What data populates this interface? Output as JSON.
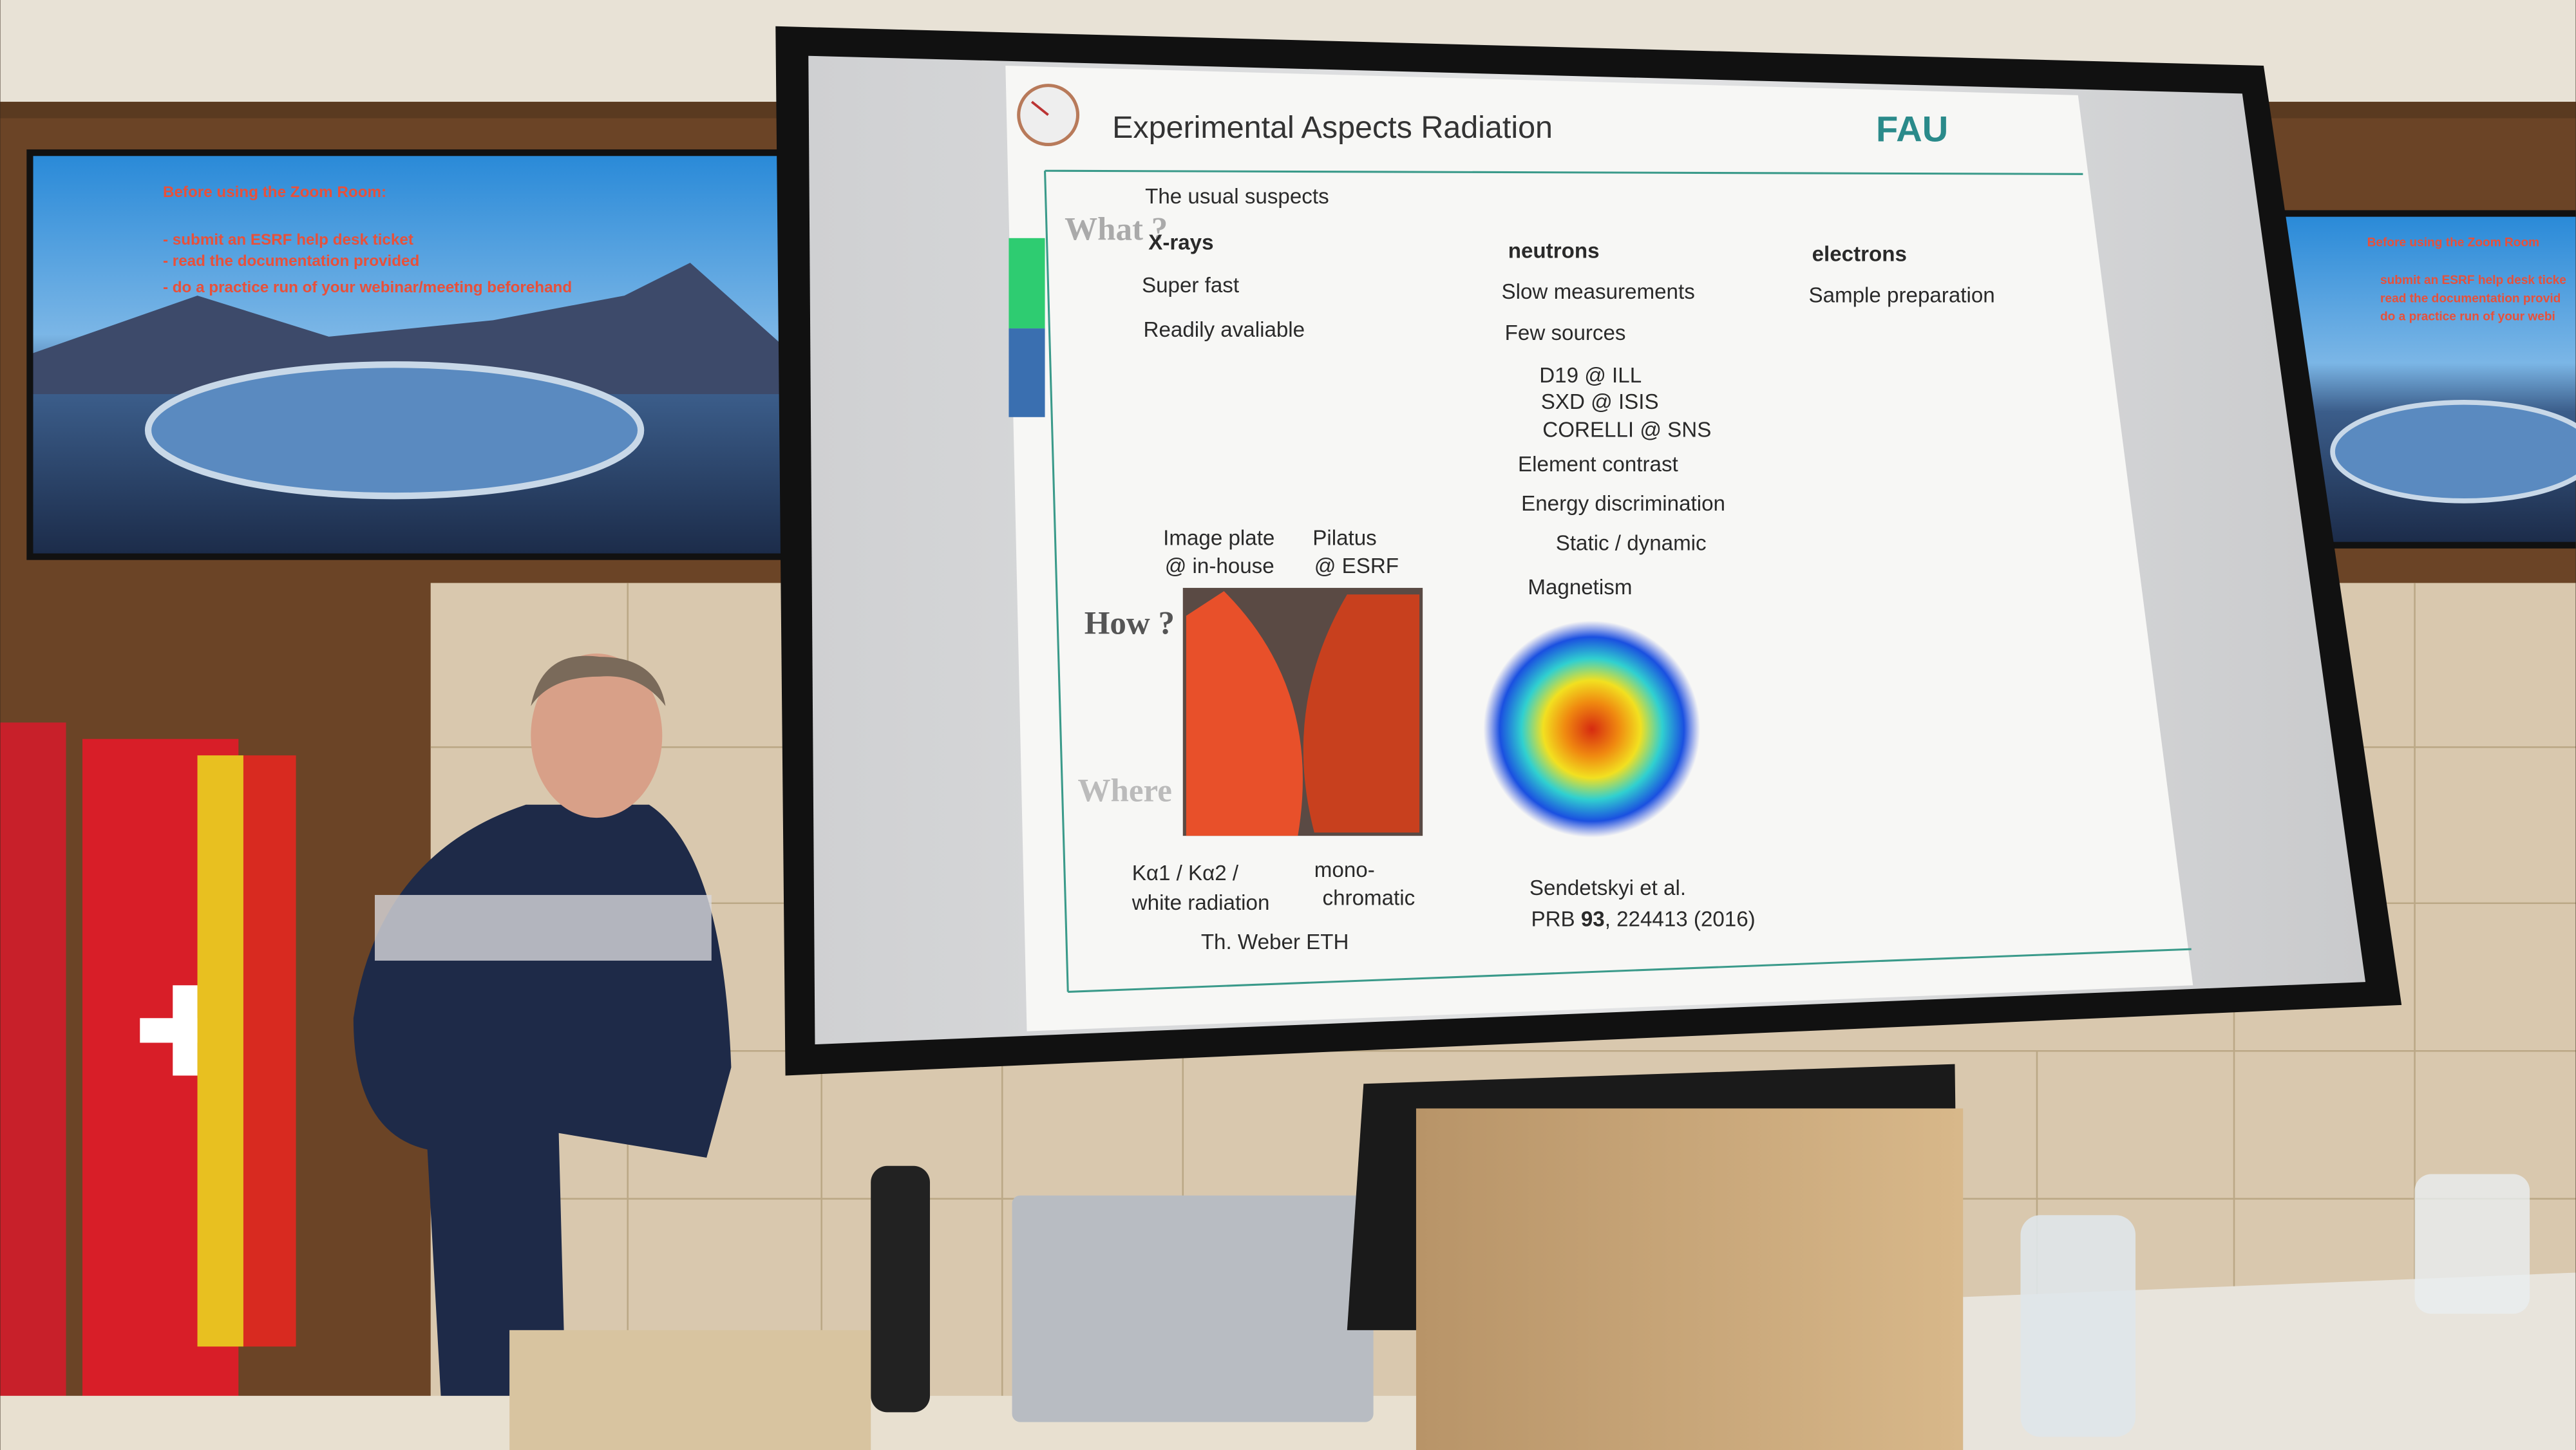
{
  "left_screen": {
    "heading": "Before using the Zoom Room:",
    "items": [
      "- submit an ESRF help desk ticket",
      "- read the documentation provided",
      "- do a practice run of your webinar/meeting beforehand"
    ]
  },
  "right_screen": {
    "heading": "Before using the Zoom Room",
    "items": [
      "submit an ESRF help desk ticke",
      "read the documentation provid",
      "do a practice run of your webi"
    ]
  },
  "slide": {
    "title": "Experimental Aspects Radiation",
    "logo": "FAU",
    "row_labels": [
      "What ?",
      "How ?",
      "Where"
    ],
    "intro": "The usual suspects",
    "xrays": {
      "heading": "X-rays",
      "items": [
        "Super fast",
        "Readily avaliable"
      ],
      "detectors": [
        "Image plate",
        "@ in-house",
        "Pilatus",
        "@ ESRF"
      ],
      "captions": [
        "Kα1 / Kα2 /",
        "white radiation",
        "mono-",
        "chromatic"
      ],
      "credit": "Th. Weber ETH"
    },
    "neutrons": {
      "heading": "neutrons",
      "items": [
        "Slow measurements",
        "Few sources",
        "D19 @ ILL",
        "SXD @ ISIS",
        "CORELLI @ SNS",
        "Element contrast",
        "Energy discrimination",
        "Static / dynamic",
        "Magnetism"
      ],
      "reference": [
        "Sendetskyi et al.",
        "PRB ",
        "93",
        ", 224413 (2016)"
      ]
    },
    "electrons": {
      "heading": "electrons",
      "items": [
        "Sample preparation"
      ]
    }
  }
}
